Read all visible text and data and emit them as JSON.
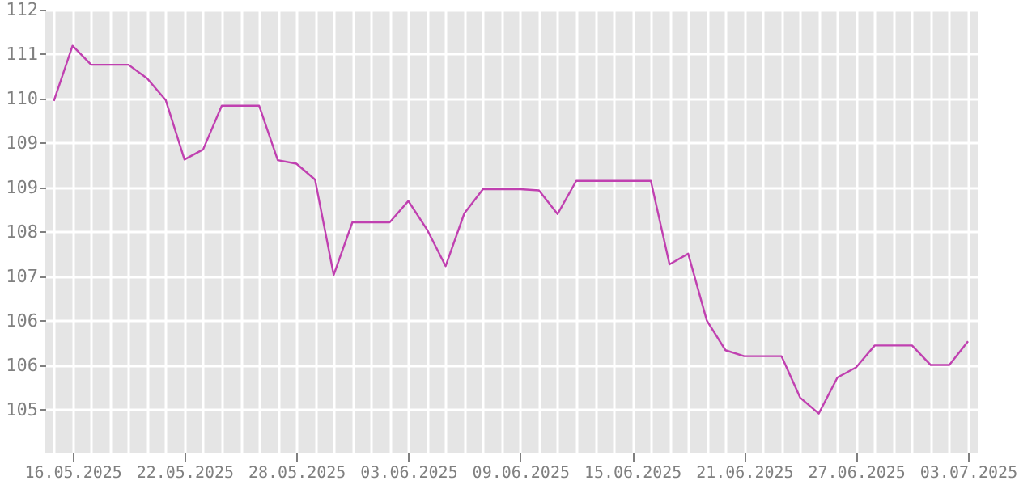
{
  "chart_data": {
    "type": "line",
    "x": [
      "2025-05-15",
      "2025-05-16",
      "2025-05-17",
      "2025-05-18",
      "2025-05-19",
      "2025-05-20",
      "2025-05-21",
      "2025-05-22",
      "2025-05-23",
      "2025-05-24",
      "2025-05-25",
      "2025-05-26",
      "2025-05-27",
      "2025-05-28",
      "2025-05-29",
      "2025-05-30",
      "2025-05-31",
      "2025-06-01",
      "2025-06-02",
      "2025-06-03",
      "2025-06-04",
      "2025-06-05",
      "2025-06-06",
      "2025-06-07",
      "2025-06-08",
      "2025-06-09",
      "2025-06-10",
      "2025-06-11",
      "2025-06-12",
      "2025-06-13",
      "2025-06-14",
      "2025-06-15",
      "2025-06-16",
      "2025-06-17",
      "2025-06-18",
      "2025-06-19",
      "2025-06-20",
      "2025-06-21",
      "2025-06-22",
      "2025-06-23",
      "2025-06-24",
      "2025-06-25",
      "2025-06-26",
      "2025-06-27",
      "2025-06-28",
      "2025-06-29",
      "2025-06-30",
      "2025-07-01",
      "2025-07-02",
      "2025-07-03"
    ],
    "series": [
      {
        "color": "#c040b0",
        "values": [
          110.06,
          110.99,
          110.67,
          110.67,
          110.67,
          110.44,
          110.07,
          109.07,
          109.24,
          109.98,
          109.98,
          109.98,
          109.06,
          109.0,
          108.73,
          107.12,
          108.01,
          108.01,
          108.01,
          108.37,
          107.89,
          107.27,
          108.16,
          108.57,
          108.57,
          108.57,
          108.55,
          108.15,
          108.71,
          108.71,
          108.71,
          108.71,
          108.71,
          107.3,
          107.48,
          106.35,
          105.85,
          105.75,
          105.75,
          105.75,
          105.05,
          104.78,
          105.39,
          105.56,
          105.93,
          105.93,
          105.93,
          105.6,
          105.6,
          106.0
        ]
      }
    ],
    "xlim": [
      "2025-05-14T13:00",
      "2025-07-03T12:30"
    ],
    "xticks": [
      {
        "value": "2025-05-15",
        "label": null
      },
      {
        "value": "2025-05-16",
        "label": "16.05.2025"
      },
      {
        "value": "2025-05-17",
        "label": null
      },
      {
        "value": "2025-05-18",
        "label": null
      },
      {
        "value": "2025-05-19",
        "label": null
      },
      {
        "value": "2025-05-20",
        "label": null
      },
      {
        "value": "2025-05-21",
        "label": null
      },
      {
        "value": "2025-05-22",
        "label": "22.05.2025"
      },
      {
        "value": "2025-05-23",
        "label": null
      },
      {
        "value": "2025-05-24",
        "label": null
      },
      {
        "value": "2025-05-25",
        "label": null
      },
      {
        "value": "2025-05-26",
        "label": null
      },
      {
        "value": "2025-05-27",
        "label": null
      },
      {
        "value": "2025-05-28",
        "label": "28.05.2025"
      },
      {
        "value": "2025-05-29",
        "label": null
      },
      {
        "value": "2025-05-30",
        "label": null
      },
      {
        "value": "2025-05-31",
        "label": null
      },
      {
        "value": "2025-06-01",
        "label": null
      },
      {
        "value": "2025-06-02",
        "label": null
      },
      {
        "value": "2025-06-03",
        "label": "03.06.2025"
      },
      {
        "value": "2025-06-04",
        "label": null
      },
      {
        "value": "2025-06-05",
        "label": null
      },
      {
        "value": "2025-06-06",
        "label": null
      },
      {
        "value": "2025-06-07",
        "label": null
      },
      {
        "value": "2025-06-08",
        "label": null
      },
      {
        "value": "2025-06-09",
        "label": "09.06.2025"
      },
      {
        "value": "2025-06-10",
        "label": null
      },
      {
        "value": "2025-06-11",
        "label": null
      },
      {
        "value": "2025-06-12",
        "label": null
      },
      {
        "value": "2025-06-13",
        "label": null
      },
      {
        "value": "2025-06-14",
        "label": null
      },
      {
        "value": "2025-06-15",
        "label": "15.06.2025"
      },
      {
        "value": "2025-06-16",
        "label": null
      },
      {
        "value": "2025-06-17",
        "label": null
      },
      {
        "value": "2025-06-18",
        "label": null
      },
      {
        "value": "2025-06-19",
        "label": null
      },
      {
        "value": "2025-06-20",
        "label": null
      },
      {
        "value": "2025-06-21",
        "label": "21.06.2025"
      },
      {
        "value": "2025-06-22",
        "label": null
      },
      {
        "value": "2025-06-23",
        "label": null
      },
      {
        "value": "2025-06-24",
        "label": null
      },
      {
        "value": "2025-06-25",
        "label": null
      },
      {
        "value": "2025-06-26",
        "label": null
      },
      {
        "value": "2025-06-27",
        "label": "27.06.2025"
      },
      {
        "value": "2025-06-28",
        "label": null
      },
      {
        "value": "2025-06-29",
        "label": null
      },
      {
        "value": "2025-06-30",
        "label": null
      },
      {
        "value": "2025-07-01",
        "label": null
      },
      {
        "value": "2025-07-02",
        "label": null
      },
      {
        "value": "2025-07-03",
        "label": "03.07.2025"
      }
    ],
    "ylim": [
      104.12,
      111.6
    ],
    "yticks": [
      {
        "value": 111.6,
        "label": "112"
      },
      {
        "value": 110.85,
        "label": "111"
      },
      {
        "value": 110.1,
        "label": "110"
      },
      {
        "value": 109.35,
        "label": "109"
      },
      {
        "value": 108.6,
        "label": "109"
      },
      {
        "value": 107.85,
        "label": "108"
      },
      {
        "value": 107.1,
        "label": "107"
      },
      {
        "value": 106.35,
        "label": "106"
      },
      {
        "value": 105.6,
        "label": "106"
      },
      {
        "value": 104.85,
        "label": "105"
      }
    ],
    "grid": true,
    "marker": "none",
    "line_style": "solid"
  }
}
